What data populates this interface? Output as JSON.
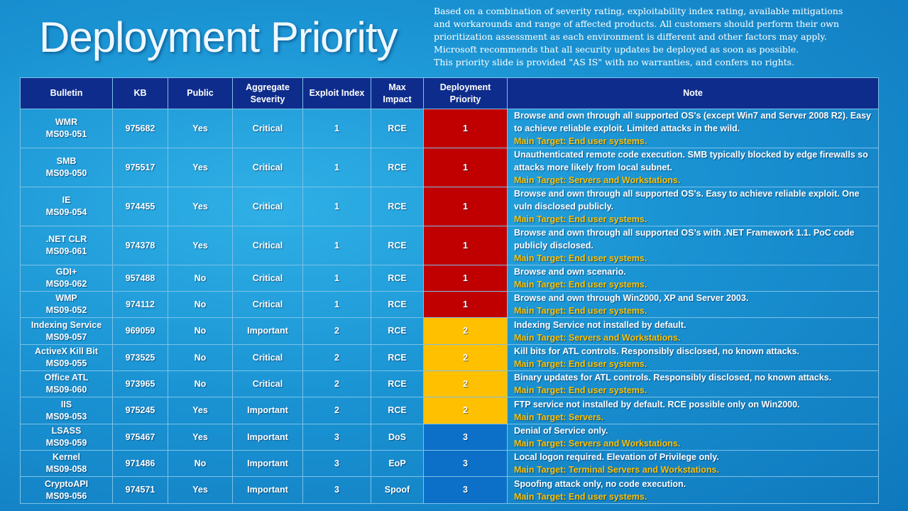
{
  "title": "Deployment Priority",
  "disclaimer": [
    "Based on a combination of severity rating, exploitability index rating, available mitigations",
    "and workarounds and range of affected products.  All customers should perform their own",
    "prioritization assessment as each environment is different and other factors may apply.",
    "Microsoft recommends that all security updates be deployed as soon as possible.",
    "This priority slide is provided \"AS IS\" with no warranties, and confers no rights."
  ],
  "colors": {
    "priority_1": "#c00000",
    "priority_2": "#ffc000",
    "priority_3": "#0c70c8",
    "header_bg": "#0e2c8c",
    "target_text": "#ffc000"
  },
  "headers": {
    "bulletin": "Bulletin",
    "kb": "KB",
    "public": "Public",
    "severity_1": "Aggregate",
    "severity_2": "Severity",
    "exploit": "Exploit Index",
    "impact_1": "Max",
    "impact_2": "Impact",
    "priority_1": "Deployment",
    "priority_2": "Priority",
    "note": "Note"
  },
  "rows": [
    {
      "name": "WMR",
      "id": "MS09-051",
      "kb": "975682",
      "public": "Yes",
      "severity": "Critical",
      "exploit": "1",
      "impact": "RCE",
      "priority": "1",
      "note": "Browse and own through all supported OS's (except Win7 and Server 2008  R2).  Easy to achieve reliable exploit. Limited attacks in the wild.",
      "target": "Main Target: End user systems."
    },
    {
      "name": "SMB",
      "id": "MS09-050",
      "kb": "975517",
      "public": "Yes",
      "severity": "Critical",
      "exploit": "1",
      "impact": "RCE",
      "priority": "1",
      "note": "Unauthenticated remote code execution. SMB typically blocked by edge firewalls so attacks more likely from local subnet.",
      "target": "Main Target: Servers and Workstations."
    },
    {
      "name": "IE",
      "id": "MS09-054",
      "kb": "974455",
      "public": "Yes",
      "severity": "Critical",
      "exploit": "1",
      "impact": "RCE",
      "priority": "1",
      "note": "Browse and own through all supported OS's. Easy to achieve reliable exploit. One vuln disclosed publicly.",
      "target": "Main Target: End user systems."
    },
    {
      "name": ".NET CLR",
      "id": "MS09-061",
      "kb": "974378",
      "public": "Yes",
      "severity": "Critical",
      "exploit": "1",
      "impact": "RCE",
      "priority": "1",
      "note": "Browse and own through all supported OS’s with .NET Framework 1.1.  PoC code publicly disclosed.",
      "target": "Main Target: End user systems."
    },
    {
      "name": "GDI+",
      "id": "MS09-062",
      "kb": "957488",
      "public": "No",
      "severity": "Critical",
      "exploit": "1",
      "impact": "RCE",
      "priority": "1",
      "note": "Browse and own scenario.",
      "target": "Main Target: End user systems."
    },
    {
      "name": "WMP",
      "id": "MS09-052",
      "kb": "974112",
      "public": "No",
      "severity": "Critical",
      "exploit": "1",
      "impact": "RCE",
      "priority": "1",
      "note": "Browse and own through Win2000, XP and Server 2003.",
      "target": "Main Target: End user systems."
    },
    {
      "name": "Indexing Service",
      "id": "MS09-057",
      "kb": "969059",
      "public": "No",
      "severity": "Important",
      "exploit": "2",
      "impact": "RCE",
      "priority": "2",
      "note": "Indexing Service not installed by default.",
      "target": "Main Target: Servers and Workstations."
    },
    {
      "name": "ActiveX Kill Bit",
      "id": "MS09-055",
      "kb": "973525",
      "public": "No",
      "severity": "Critical",
      "exploit": "2",
      "impact": "RCE",
      "priority": "2",
      "note": "Kill bits for ATL controls. Responsibly disclosed, no known attacks.",
      "target": "Main Target: End user systems."
    },
    {
      "name": "Office ATL",
      "id": "MS09-060",
      "kb": "973965",
      "public": "No",
      "severity": "Critical",
      "exploit": "2",
      "impact": "RCE",
      "priority": "2",
      "note": "Binary updates for ATL controls. Responsibly disclosed, no known attacks.",
      "target": "Main Target: End user systems."
    },
    {
      "name": "IIS",
      "id": "MS09-053",
      "kb": "975245",
      "public": "Yes",
      "severity": "Important",
      "exploit": "2",
      "impact": "RCE",
      "priority": "2",
      "note": "FTP service not installed by default. RCE possible only on Win2000.",
      "target": "Main Target: Servers."
    },
    {
      "name": "LSASS",
      "id": "MS09-059",
      "kb": "975467",
      "public": "Yes",
      "severity": "Important",
      "exploit": "3",
      "impact": "DoS",
      "priority": "3",
      "note": "Denial of Service only.",
      "target": "Main Target: Servers and Workstations."
    },
    {
      "name": "Kernel",
      "id": "MS09-058",
      "kb": "971486",
      "public": "No",
      "severity": "Important",
      "exploit": "3",
      "impact": "EoP",
      "priority": "3",
      "note": "Local logon required. Elevation of Privilege only.",
      "target": "Main Target: Terminal Servers and Workstations."
    },
    {
      "name": "CryptoAPI",
      "id": "MS09-056",
      "kb": "974571",
      "public": "Yes",
      "severity": "Important",
      "exploit": "3",
      "impact": "Spoof",
      "priority": "3",
      "note": "Spoofing attack only,  no code execution.",
      "target": "Main Target: End user systems."
    }
  ]
}
